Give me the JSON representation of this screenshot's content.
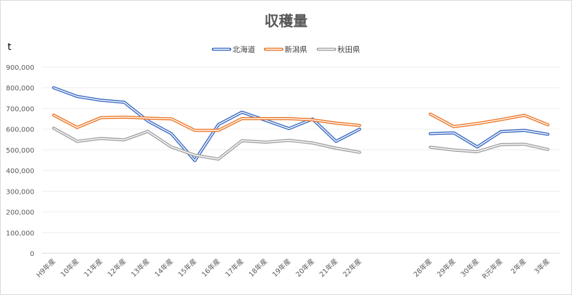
{
  "chart_data": {
    "type": "line",
    "title": "収穫量",
    "ylabel": "t",
    "xlabel": "",
    "ylim": [
      0,
      900000
    ],
    "yticks": [
      "0",
      "100,000",
      "200,000",
      "300,000",
      "400,000",
      "500,000",
      "600,000",
      "700,000",
      "800,000",
      "900,000"
    ],
    "categories": [
      "H9年産",
      "10年産",
      "11年産",
      "12年産",
      "13年産",
      "14年産",
      "15年産",
      "16年産",
      "17年産",
      "18年産",
      "19年産",
      "20年産",
      "21年産",
      "22年産",
      "",
      "",
      "28年産",
      "29年産",
      "30年産",
      "R元年産",
      "2年産",
      "3年産"
    ],
    "grid": true,
    "legend": "top",
    "series": [
      {
        "name": "北海道",
        "color": "#4472C4",
        "values": [
          800000,
          758000,
          740000,
          730000,
          640000,
          578000,
          448000,
          622000,
          682000,
          643000,
          603000,
          649000,
          541000,
          600000,
          null,
          null,
          578000,
          582000,
          514000,
          588000,
          594000,
          575000
        ]
      },
      {
        "name": "新潟県",
        "color": "#ED7D31",
        "values": [
          668000,
          608000,
          655000,
          658000,
          653000,
          650000,
          594000,
          594000,
          651000,
          651000,
          651000,
          645000,
          629000,
          618000,
          null,
          null,
          673000,
          612000,
          627000,
          646000,
          667000,
          621000
        ]
      },
      {
        "name": "秋田県",
        "color": "#A5A5A5",
        "values": [
          605000,
          541000,
          555000,
          548000,
          589000,
          514000,
          474000,
          455000,
          544000,
          537000,
          546000,
          533000,
          508000,
          488000,
          null,
          null,
          513000,
          499000,
          491000,
          525000,
          527000,
          502000
        ]
      }
    ]
  }
}
